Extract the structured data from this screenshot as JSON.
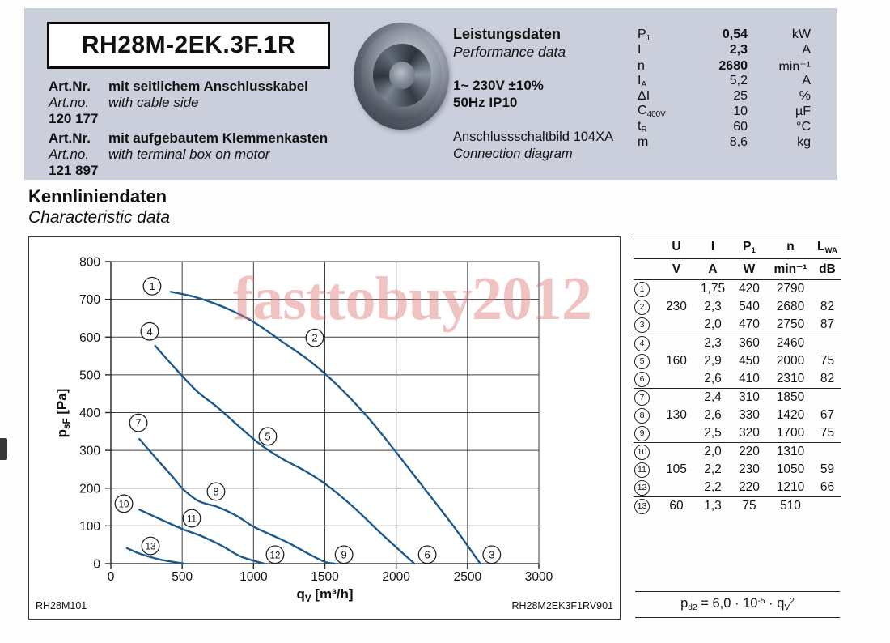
{
  "header": {
    "model": "RH28M-2EK.3F.1R",
    "art1_label_de": "Art.Nr.",
    "art1_desc_de": "mit seitlichem Anschlusskabel",
    "art1_label_en": "Art.no.",
    "art1_desc_en": "with cable side",
    "art1_number": "120 177",
    "art2_label_de": "Art.Nr.",
    "art2_desc_de": "mit aufgebautem Klemmenkasten",
    "art2_label_en": "Art.no.",
    "art2_desc_en": "with terminal box on motor",
    "art2_number": "121 897",
    "perf_title_de": "Leistungsdaten",
    "perf_title_en": "Performance data",
    "voltage": "1~ 230V ±10%",
    "freq_ip": "50Hz   IP10",
    "connection_de": "Anschlussschaltbild 104XA",
    "connection_en": "Connection diagram",
    "specs": [
      {
        "sym": "P",
        "sub": "1",
        "value": "0,54",
        "unit": "kW",
        "bold": true
      },
      {
        "sym": "I",
        "sub": "",
        "value": "2,3",
        "unit": "A",
        "bold": true
      },
      {
        "sym": "n",
        "sub": "",
        "value": "2680",
        "unit": "min⁻¹",
        "bold": true
      },
      {
        "sym": "I",
        "sub": "A",
        "value": "5,2",
        "unit": "A",
        "bold": false
      },
      {
        "sym": "ΔI",
        "sub": "",
        "value": "25",
        "unit": "%",
        "bold": false
      },
      {
        "sym": "C",
        "sub": "400V",
        "value": "10",
        "unit": "µF",
        "bold": false
      },
      {
        "sym": "t",
        "sub": "R",
        "value": "60",
        "unit": "°C",
        "bold": false
      },
      {
        "sym": "m",
        "sub": "",
        "value": "8,6",
        "unit": "kg",
        "bold": false
      }
    ]
  },
  "section": {
    "title_de": "Kennliniendaten",
    "title_en": "Characteristic data"
  },
  "watermark": "fasttobuy2012",
  "chart_data": {
    "type": "line",
    "xlabel_main": "q",
    "xlabel_sub": "V",
    "xlabel_rest": " [m³/h]",
    "ylabel_main": "p",
    "ylabel_sub": "sF",
    "ylabel_rest": " [Pa]",
    "xlim": [
      0,
      3000
    ],
    "ylim": [
      0,
      800
    ],
    "xtick_step": 500,
    "ytick_step": 100,
    "grid": true,
    "legend_position": "none",
    "curve_color": "#1d5a8b",
    "footer_left": "RH28M101",
    "footer_right": "RH28M2EK3F1RV901",
    "series": [
      {
        "name": "curve-points-1-2-3",
        "points": [
          [
            420,
            720
          ],
          [
            600,
            705
          ],
          [
            800,
            678
          ],
          [
            1000,
            640
          ],
          [
            1200,
            588
          ],
          [
            1400,
            535
          ],
          [
            1600,
            468
          ],
          [
            1800,
            388
          ],
          [
            2000,
            295
          ],
          [
            2200,
            198
          ],
          [
            2400,
            100
          ],
          [
            2590,
            0
          ]
        ]
      },
      {
        "name": "curve-points-4-5-6",
        "points": [
          [
            310,
            577
          ],
          [
            450,
            518
          ],
          [
            600,
            458
          ],
          [
            750,
            413
          ],
          [
            900,
            363
          ],
          [
            1050,
            315
          ],
          [
            1200,
            278
          ],
          [
            1350,
            248
          ],
          [
            1500,
            212
          ],
          [
            1700,
            150
          ],
          [
            1900,
            78
          ],
          [
            2128,
            0
          ]
        ]
      },
      {
        "name": "curve-points-7-8-9",
        "points": [
          [
            200,
            330
          ],
          [
            320,
            278
          ],
          [
            440,
            227
          ],
          [
            510,
            196
          ],
          [
            620,
            165
          ],
          [
            750,
            150
          ],
          [
            880,
            127
          ],
          [
            1000,
            98
          ],
          [
            1130,
            75
          ],
          [
            1250,
            54
          ],
          [
            1390,
            25
          ],
          [
            1500,
            5
          ],
          [
            1570,
            0
          ]
        ]
      },
      {
        "name": "curve-points-10-11-12",
        "points": [
          [
            200,
            143
          ],
          [
            344,
            118
          ],
          [
            500,
            92
          ],
          [
            640,
            72
          ],
          [
            780,
            47
          ],
          [
            910,
            19
          ],
          [
            1075,
            0
          ]
        ]
      },
      {
        "name": "curve-point-13",
        "points": [
          [
            113,
            41
          ],
          [
            212,
            25
          ],
          [
            344,
            11
          ],
          [
            514,
            0
          ]
        ]
      }
    ],
    "point_labels": [
      {
        "n": "1",
        "x": 289,
        "y": 735
      },
      {
        "n": "2",
        "x": 1429,
        "y": 598
      },
      {
        "n": "3",
        "x": 2670,
        "y": 24
      },
      {
        "n": "4",
        "x": 272,
        "y": 615
      },
      {
        "n": "5",
        "x": 1100,
        "y": 337
      },
      {
        "n": "6",
        "x": 2218,
        "y": 24
      },
      {
        "n": "7",
        "x": 193,
        "y": 373
      },
      {
        "n": "8",
        "x": 737,
        "y": 191
      },
      {
        "n": "9",
        "x": 1634,
        "y": 24
      },
      {
        "n": "10",
        "x": 91,
        "y": 159
      },
      {
        "n": "11",
        "x": 567,
        "y": 120
      },
      {
        "n": "12",
        "x": 1151,
        "y": 24
      },
      {
        "n": "13",
        "x": 278,
        "y": 47
      }
    ]
  },
  "table": {
    "col_symbols": [
      {
        "t": "U",
        "sub": ""
      },
      {
        "t": "I",
        "sub": ""
      },
      {
        "t": "P",
        "sub": "1"
      },
      {
        "t": "n",
        "sub": ""
      },
      {
        "t": "L",
        "sub": "WA"
      }
    ],
    "col_units": [
      "V",
      "A",
      "W",
      "min⁻¹",
      "dB"
    ],
    "rows": [
      {
        "n": "1",
        "u": "",
        "i": "1,75",
        "p": "420",
        "rpm": "2790",
        "lwa": ""
      },
      {
        "n": "2",
        "u": "230",
        "i": "2,3",
        "p": "540",
        "rpm": "2680",
        "lwa": "82"
      },
      {
        "n": "3",
        "u": "",
        "i": "2,0",
        "p": "470",
        "rpm": "2750",
        "lwa": "87"
      },
      {
        "n": "4",
        "u": "",
        "i": "2,3",
        "p": "360",
        "rpm": "2460",
        "lwa": ""
      },
      {
        "n": "5",
        "u": "160",
        "i": "2,9",
        "p": "450",
        "rpm": "2000",
        "lwa": "75"
      },
      {
        "n": "6",
        "u": "",
        "i": "2,6",
        "p": "410",
        "rpm": "2310",
        "lwa": "82"
      },
      {
        "n": "7",
        "u": "",
        "i": "2,4",
        "p": "310",
        "rpm": "1850",
        "lwa": ""
      },
      {
        "n": "8",
        "u": "130",
        "i": "2,6",
        "p": "330",
        "rpm": "1420",
        "lwa": "67"
      },
      {
        "n": "9",
        "u": "",
        "i": "2,5",
        "p": "320",
        "rpm": "1700",
        "lwa": "75"
      },
      {
        "n": "10",
        "u": "",
        "i": "2,0",
        "p": "220",
        "rpm": "1310",
        "lwa": ""
      },
      {
        "n": "11",
        "u": "105",
        "i": "2,2",
        "p": "230",
        "rpm": "1050",
        "lwa": "59"
      },
      {
        "n": "12",
        "u": "",
        "i": "2,2",
        "p": "220",
        "rpm": "1210",
        "lwa": "66"
      },
      {
        "n": "13",
        "u": "60",
        "i": "1,3",
        "p": "75",
        "rpm": "510",
        "lwa": ""
      }
    ],
    "group_end_rows": [
      3,
      6,
      9,
      12
    ]
  },
  "formula": {
    "p": "p",
    "p_sub": "d2",
    "eq": " = 6,0 · 10",
    "exp": "-5",
    "mid": " · q",
    "q_sub": "V",
    "q_exp": "2"
  }
}
